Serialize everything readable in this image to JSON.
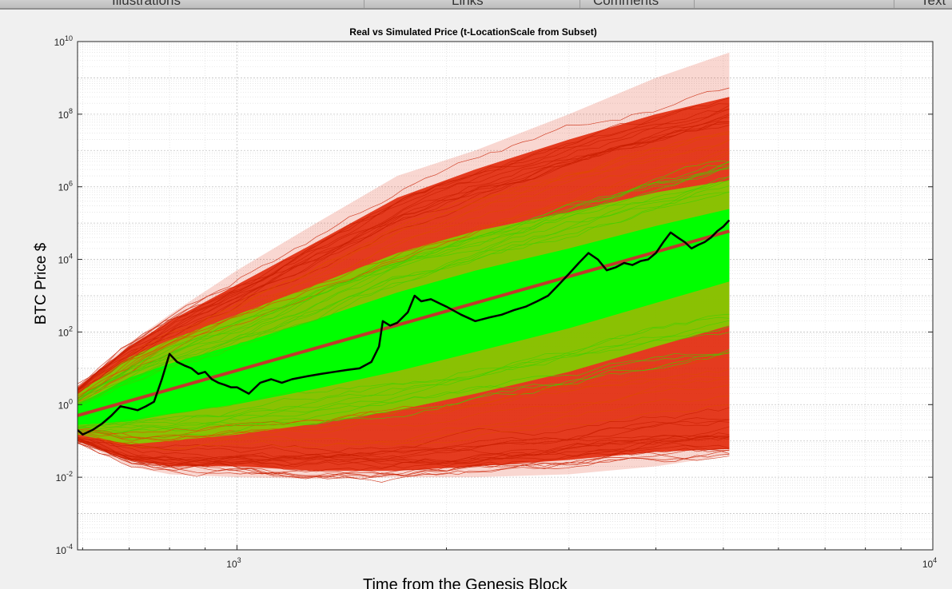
{
  "tabs": [
    {
      "label": "Illustrations"
    },
    {
      "label": "Links"
    },
    {
      "label": "Comments"
    },
    {
      "label": "Text"
    }
  ],
  "chart_data": {
    "type": "line",
    "title": "Real vs Simulated Price (t-LocationScale from Subset)",
    "xlabel": "Time from the Genesis Block",
    "ylabel": "BTC Price $",
    "x_scale": "log",
    "y_scale": "log",
    "xlim": [
      590,
      10000
    ],
    "ylim": [
      0.0001,
      10000000000
    ],
    "x_ticks": [
      {
        "value": 1000,
        "base": "10",
        "exp": "3"
      },
      {
        "value": 10000,
        "base": "10",
        "exp": "4"
      }
    ],
    "y_ticks": [
      {
        "value": 0.0001,
        "base": "10",
        "exp": "-4"
      },
      {
        "value": 0.01,
        "base": "10",
        "exp": "-2"
      },
      {
        "value": 1,
        "base": "10",
        "exp": "0"
      },
      {
        "value": 100,
        "base": "10",
        "exp": "2"
      },
      {
        "value": 10000,
        "base": "10",
        "exp": "4"
      },
      {
        "value": 1000000,
        "base": "10",
        "exp": "6"
      },
      {
        "value": 100000000,
        "base": "10",
        "exp": "8"
      },
      {
        "value": 10000000000,
        "base": "10",
        "exp": "10"
      }
    ],
    "grid": true,
    "minor_grid": true,
    "colors": {
      "simulated_center": "#00ff00",
      "simulated_edge": "#e02000",
      "real_price": "#000000",
      "trend": "#c0392b"
    },
    "simulated_envelope": {
      "x": [
        590,
        700,
        800,
        1000,
        1300,
        1700,
        2200,
        3000,
        4000,
        5100
      ],
      "median": [
        0.5,
        1.5,
        3,
        7,
        25,
        100,
        400,
        2000,
        10000,
        40000
      ],
      "green_upper": [
        2,
        20,
        60,
        300,
        2000,
        15000,
        60000,
        200000,
        700000,
        1500000
      ],
      "green_lower": [
        0.15,
        0.08,
        0.1,
        0.15,
        0.3,
        0.7,
        2,
        8,
        40,
        150
      ],
      "red_upper": [
        3,
        40,
        200,
        2000,
        30000,
        500000,
        3000000,
        20000000,
        100000000,
        300000000
      ],
      "red_lower": [
        0.1,
        0.03,
        0.02,
        0.02,
        0.015,
        0.015,
        0.02,
        0.03,
        0.05,
        0.06
      ],
      "extreme_upper": [
        3,
        50,
        300,
        5000,
        100000,
        2000000,
        10000000,
        100000000,
        1000000000,
        5000000000
      ],
      "extreme_lower": [
        0.1,
        0.02,
        0.012,
        0.01,
        0.009,
        0.01,
        0.01,
        0.012,
        0.02,
        0.04
      ]
    },
    "series": [
      {
        "x": [
          590,
          600,
          620,
          640,
          660,
          680,
          700,
          720,
          740,
          760,
          780,
          800,
          820,
          840,
          860,
          880,
          900,
          920,
          940,
          960,
          980,
          1000,
          1040,
          1080,
          1120,
          1160,
          1200,
          1260,
          1320,
          1380,
          1440,
          1500,
          1560,
          1600,
          1620,
          1660,
          1700,
          1760,
          1800,
          1840,
          1900,
          1960,
          2000,
          2100,
          2200,
          2300,
          2400,
          2500,
          2600,
          2700,
          2800,
          2900,
          3000,
          3100,
          3200,
          3300,
          3400,
          3500,
          3600,
          3700,
          3800,
          3900,
          4000,
          4100,
          4200,
          4300,
          4400,
          4500,
          4600,
          4700,
          4800,
          4900,
          5000,
          5100
        ],
        "y": [
          0.2,
          0.15,
          0.2,
          0.3,
          0.5,
          0.9,
          0.8,
          0.7,
          0.9,
          1.2,
          5,
          25,
          15,
          12,
          10,
          7,
          8,
          5,
          4,
          3.5,
          3,
          3,
          2,
          4,
          5,
          4,
          5,
          6,
          7,
          8,
          9,
          10,
          15,
          40,
          200,
          150,
          180,
          350,
          1000,
          700,
          800,
          600,
          500,
          300,
          200,
          250,
          300,
          400,
          500,
          700,
          1000,
          2000,
          4000,
          8000,
          15000,
          10000,
          5000,
          6000,
          8000,
          7000,
          9000,
          10000,
          15000,
          30000,
          55000,
          40000,
          30000,
          20000,
          25000,
          30000,
          40000,
          60000,
          80000,
          120000
        ]
      },
      {
        "x": [
          590,
          5100
        ],
        "y": [
          0.5,
          60000
        ]
      }
    ]
  }
}
